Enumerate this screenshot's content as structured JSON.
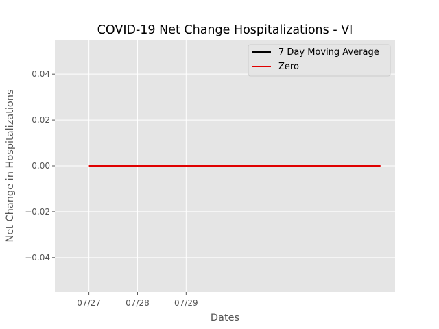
{
  "chart_data": {
    "type": "line",
    "title": "COVID-19 Net Change Hospitalizations - VI",
    "xlabel": "Dates",
    "ylabel": "Net Change in Hospitalizations",
    "x_ticks": [
      "07/27",
      "07/28",
      "07/29"
    ],
    "y_ticks": [
      "0.04",
      "0.02",
      "0.00",
      "−0.02",
      "−0.04"
    ],
    "y_tick_values": [
      0.04,
      0.02,
      0.0,
      -0.02,
      -0.04
    ],
    "ylim": [
      -0.055,
      0.055
    ],
    "x_range_days": [
      -0.7,
      6.3
    ],
    "grid": true,
    "legend_position": "top-right",
    "series": [
      {
        "name": "7 Day Moving Average",
        "color": "#000000",
        "x": [],
        "y": []
      },
      {
        "name": "Zero",
        "color": "#e00000",
        "x": [
          0,
          6
        ],
        "y": [
          0,
          0
        ]
      }
    ]
  }
}
